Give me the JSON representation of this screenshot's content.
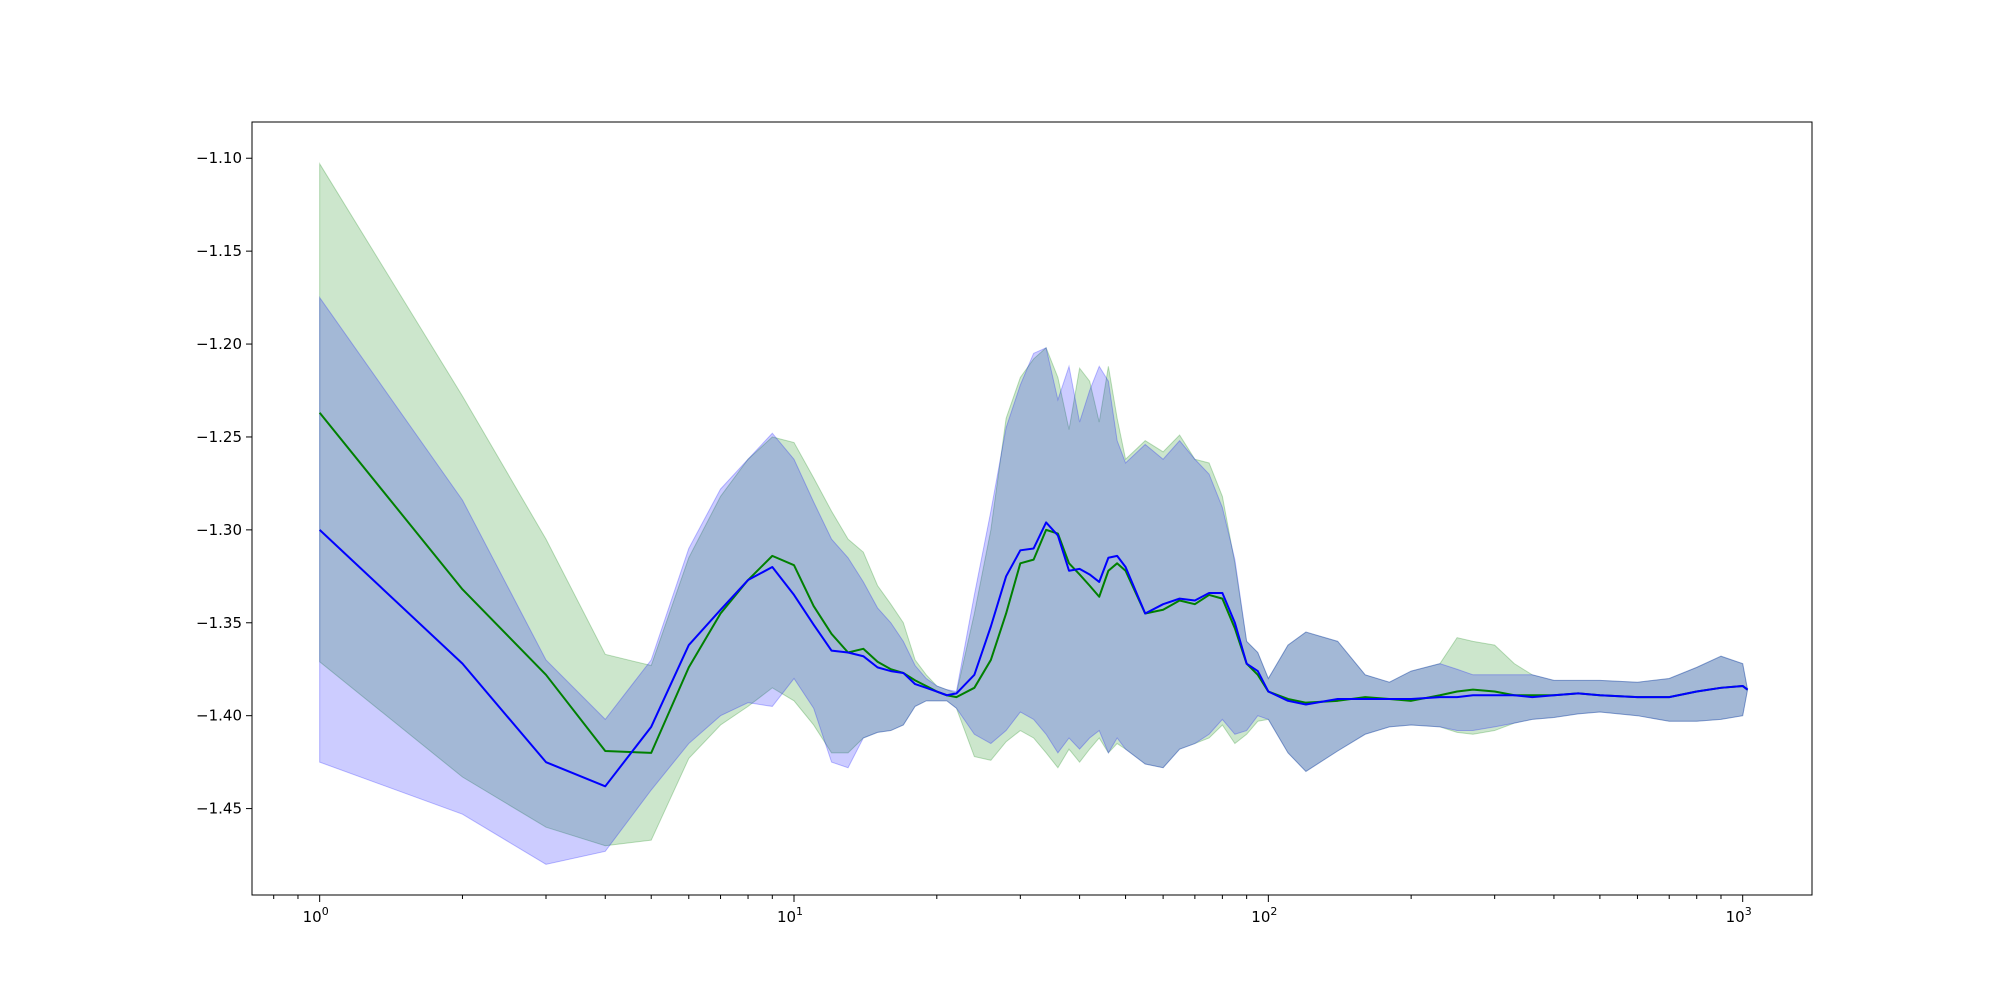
{
  "chart_data": {
    "type": "line",
    "title": "",
    "xlabel": "",
    "ylabel": "",
    "x_scale": "log",
    "xlim": [
      0.72,
      1400
    ],
    "ylim": [
      -1.4965,
      -1.0805
    ],
    "grid": false,
    "legend": "none",
    "x_ticks": [
      {
        "base": "10",
        "exp": "0",
        "value": 1
      },
      {
        "base": "10",
        "exp": "1",
        "value": 10
      },
      {
        "base": "10",
        "exp": "2",
        "value": 100
      },
      {
        "base": "10",
        "exp": "3",
        "value": 1000
      }
    ],
    "y_ticks": [
      {
        "label": "−1.10",
        "value": -1.1
      },
      {
        "label": "−1.15",
        "value": -1.15
      },
      {
        "label": "−1.20",
        "value": -1.2
      },
      {
        "label": "−1.25",
        "value": -1.25
      },
      {
        "label": "−1.30",
        "value": -1.3
      },
      {
        "label": "−1.35",
        "value": -1.35
      },
      {
        "label": "−1.40",
        "value": -1.4
      },
      {
        "label": "−1.45",
        "value": -1.45
      }
    ],
    "series": [
      {
        "color": "#008000",
        "band_color": "#008000",
        "band_opacity": 0.2,
        "x": [
          1,
          2,
          3,
          4,
          5,
          6,
          7,
          8,
          9,
          10,
          11,
          12,
          13,
          14,
          15,
          16,
          17,
          18,
          19,
          20,
          21,
          22,
          24,
          26,
          28,
          30,
          32,
          34,
          36,
          38,
          40,
          42,
          44,
          46,
          48,
          50,
          55,
          60,
          65,
          70,
          75,
          80,
          85,
          90,
          95,
          100,
          110,
          120,
          140,
          160,
          180,
          200,
          230,
          250,
          270,
          300,
          330,
          360,
          400,
          450,
          500,
          600,
          700,
          800,
          900,
          1000,
          1024
        ],
        "y": [
          -1.237,
          -1.332,
          -1.378,
          -1.419,
          -1.42,
          -1.374,
          -1.345,
          -1.327,
          -1.314,
          -1.319,
          -1.341,
          -1.356,
          -1.366,
          -1.364,
          -1.371,
          -1.375,
          -1.377,
          -1.381,
          -1.384,
          -1.387,
          -1.389,
          -1.39,
          -1.385,
          -1.37,
          -1.345,
          -1.318,
          -1.316,
          -1.3,
          -1.302,
          -1.318,
          -1.324,
          -1.33,
          -1.336,
          -1.322,
          -1.318,
          -1.322,
          -1.345,
          -1.343,
          -1.338,
          -1.34,
          -1.335,
          -1.337,
          -1.353,
          -1.372,
          -1.378,
          -1.387,
          -1.391,
          -1.393,
          -1.392,
          -1.39,
          -1.391,
          -1.392,
          -1.389,
          -1.387,
          -1.386,
          -1.387,
          -1.389,
          -1.389,
          -1.389,
          -1.388,
          -1.389,
          -1.39,
          -1.39,
          -1.387,
          -1.385,
          -1.384,
          -1.386
        ],
        "upper": [
          -1.103,
          -1.228,
          -1.305,
          -1.367,
          -1.373,
          -1.315,
          -1.282,
          -1.262,
          -1.25,
          -1.253,
          -1.272,
          -1.29,
          -1.305,
          -1.312,
          -1.33,
          -1.34,
          -1.35,
          -1.37,
          -1.378,
          -1.384,
          -1.386,
          -1.388,
          -1.345,
          -1.3,
          -1.24,
          -1.218,
          -1.208,
          -1.202,
          -1.218,
          -1.246,
          -1.213,
          -1.22,
          -1.242,
          -1.212,
          -1.24,
          -1.262,
          -1.252,
          -1.258,
          -1.249,
          -1.262,
          -1.264,
          -1.282,
          -1.318,
          -1.36,
          -1.366,
          -1.38,
          -1.362,
          -1.355,
          -1.36,
          -1.378,
          -1.382,
          -1.376,
          -1.372,
          -1.358,
          -1.36,
          -1.362,
          -1.372,
          -1.378,
          -1.381,
          -1.381,
          -1.381,
          -1.382,
          -1.38,
          -1.374,
          -1.368,
          -1.372,
          -1.386
        ],
        "lower": [
          -1.371,
          -1.433,
          -1.46,
          -1.47,
          -1.467,
          -1.423,
          -1.405,
          -1.395,
          -1.385,
          -1.392,
          -1.405,
          -1.42,
          -1.42,
          -1.412,
          -1.409,
          -1.408,
          -1.405,
          -1.395,
          -1.392,
          -1.392,
          -1.392,
          -1.396,
          -1.422,
          -1.424,
          -1.414,
          -1.408,
          -1.412,
          -1.42,
          -1.428,
          -1.418,
          -1.425,
          -1.418,
          -1.412,
          -1.42,
          -1.415,
          -1.418,
          -1.426,
          -1.428,
          -1.418,
          -1.415,
          -1.412,
          -1.405,
          -1.415,
          -1.41,
          -1.403,
          -1.402,
          -1.42,
          -1.43,
          -1.419,
          -1.41,
          -1.406,
          -1.405,
          -1.406,
          -1.409,
          -1.41,
          -1.408,
          -1.404,
          -1.402,
          -1.401,
          -1.399,
          -1.398,
          -1.4,
          -1.403,
          -1.403,
          -1.402,
          -1.4,
          -1.386
        ]
      },
      {
        "color": "#0000ff",
        "band_color": "#0000ff",
        "band_opacity": 0.2,
        "x": [
          1,
          2,
          3,
          4,
          5,
          6,
          7,
          8,
          9,
          10,
          11,
          12,
          13,
          14,
          15,
          16,
          17,
          18,
          19,
          20,
          21,
          22,
          24,
          26,
          28,
          30,
          32,
          34,
          36,
          38,
          40,
          42,
          44,
          46,
          48,
          50,
          55,
          60,
          65,
          70,
          75,
          80,
          85,
          90,
          95,
          100,
          110,
          120,
          140,
          160,
          180,
          200,
          230,
          250,
          270,
          300,
          330,
          360,
          400,
          450,
          500,
          600,
          700,
          800,
          900,
          1000,
          1024
        ],
        "y": [
          -1.3,
          -1.372,
          -1.425,
          -1.438,
          -1.406,
          -1.362,
          -1.343,
          -1.327,
          -1.32,
          -1.335,
          -1.351,
          -1.365,
          -1.366,
          -1.368,
          -1.374,
          -1.376,
          -1.377,
          -1.383,
          -1.385,
          -1.387,
          -1.389,
          -1.388,
          -1.378,
          -1.352,
          -1.325,
          -1.311,
          -1.31,
          -1.296,
          -1.303,
          -1.322,
          -1.321,
          -1.324,
          -1.328,
          -1.315,
          -1.314,
          -1.32,
          -1.345,
          -1.34,
          -1.337,
          -1.338,
          -1.334,
          -1.334,
          -1.35,
          -1.372,
          -1.376,
          -1.387,
          -1.392,
          -1.394,
          -1.391,
          -1.391,
          -1.391,
          -1.391,
          -1.39,
          -1.39,
          -1.389,
          -1.389,
          -1.389,
          -1.39,
          -1.389,
          -1.388,
          -1.389,
          -1.39,
          -1.39,
          -1.387,
          -1.385,
          -1.384,
          -1.386
        ],
        "upper": [
          -1.175,
          -1.284,
          -1.37,
          -1.402,
          -1.37,
          -1.31,
          -1.278,
          -1.262,
          -1.248,
          -1.262,
          -1.285,
          -1.305,
          -1.315,
          -1.328,
          -1.342,
          -1.35,
          -1.36,
          -1.373,
          -1.38,
          -1.384,
          -1.386,
          -1.387,
          -1.335,
          -1.29,
          -1.245,
          -1.222,
          -1.205,
          -1.202,
          -1.23,
          -1.212,
          -1.242,
          -1.225,
          -1.212,
          -1.22,
          -1.252,
          -1.264,
          -1.254,
          -1.262,
          -1.252,
          -1.262,
          -1.27,
          -1.288,
          -1.316,
          -1.36,
          -1.366,
          -1.38,
          -1.362,
          -1.355,
          -1.36,
          -1.378,
          -1.382,
          -1.376,
          -1.372,
          -1.375,
          -1.378,
          -1.378,
          -1.378,
          -1.378,
          -1.381,
          -1.381,
          -1.381,
          -1.382,
          -1.38,
          -1.374,
          -1.368,
          -1.372,
          -1.386
        ],
        "lower": [
          -1.425,
          -1.453,
          -1.48,
          -1.473,
          -1.44,
          -1.415,
          -1.4,
          -1.393,
          -1.395,
          -1.38,
          -1.396,
          -1.425,
          -1.428,
          -1.412,
          -1.409,
          -1.408,
          -1.405,
          -1.395,
          -1.392,
          -1.392,
          -1.392,
          -1.396,
          -1.41,
          -1.415,
          -1.408,
          -1.398,
          -1.402,
          -1.41,
          -1.42,
          -1.412,
          -1.418,
          -1.412,
          -1.408,
          -1.42,
          -1.412,
          -1.418,
          -1.426,
          -1.428,
          -1.418,
          -1.415,
          -1.41,
          -1.402,
          -1.41,
          -1.408,
          -1.4,
          -1.402,
          -1.42,
          -1.43,
          -1.419,
          -1.41,
          -1.406,
          -1.405,
          -1.406,
          -1.408,
          -1.408,
          -1.406,
          -1.404,
          -1.402,
          -1.401,
          -1.399,
          -1.398,
          -1.4,
          -1.403,
          -1.403,
          -1.402,
          -1.4,
          -1.386
        ]
      }
    ]
  }
}
